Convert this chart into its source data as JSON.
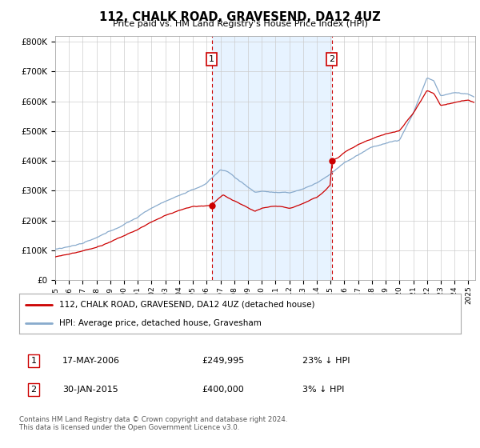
{
  "title": "112, CHALK ROAD, GRAVESEND, DA12 4UZ",
  "subtitle": "Price paid vs. HM Land Registry's House Price Index (HPI)",
  "ylabel_ticks": [
    "£0",
    "£100K",
    "£200K",
    "£300K",
    "£400K",
    "£500K",
    "£600K",
    "£700K",
    "£800K"
  ],
  "ytick_values": [
    0,
    100000,
    200000,
    300000,
    400000,
    500000,
    600000,
    700000,
    800000
  ],
  "ylim": [
    0,
    820000
  ],
  "xlim_start": 1995.0,
  "xlim_end": 2025.5,
  "sale1_date": 2006.37,
  "sale1_price": 249995,
  "sale2_date": 2015.08,
  "sale2_price": 400000,
  "legend_line1": "112, CHALK ROAD, GRAVESEND, DA12 4UZ (detached house)",
  "legend_line2": "HPI: Average price, detached house, Gravesham",
  "table_row1": [
    "1",
    "17-MAY-2006",
    "£249,995",
    "23% ↓ HPI"
  ],
  "table_row2": [
    "2",
    "30-JAN-2015",
    "£400,000",
    "3% ↓ HPI"
  ],
  "footnote": "Contains HM Land Registry data © Crown copyright and database right 2024.\nThis data is licensed under the Open Government Licence v3.0.",
  "line_color_red": "#cc0000",
  "line_color_blue": "#88aacc",
  "shade_color": "#ddeeff",
  "background_color": "#ffffff",
  "grid_color": "#cccccc",
  "vline_color": "#cc0000",
  "label_box_color": "#cc0000"
}
